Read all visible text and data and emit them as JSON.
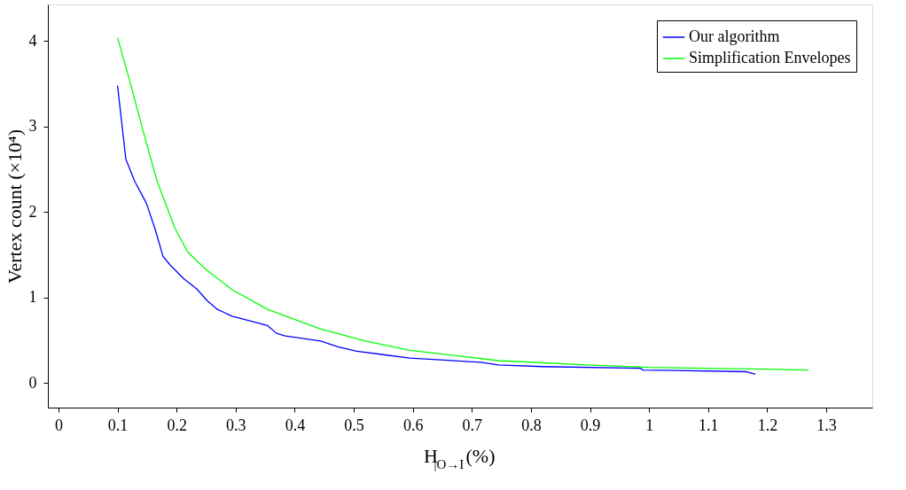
{
  "chart_data": {
    "type": "line",
    "xlabel": "H$_{|O→I}$(%)",
    "ylabel": "Vertex count (×10⁴)",
    "xlim": [
      -0.018,
      1.378
    ],
    "ylim": [
      -0.29,
      4.43
    ],
    "xticks": [
      0,
      0.1,
      0.2,
      0.3,
      0.4,
      0.5,
      0.6,
      0.7,
      0.8,
      0.9,
      1,
      1.1,
      1.2,
      1.3
    ],
    "yticks": [
      0,
      1,
      2,
      3,
      4
    ],
    "grid": false,
    "legend": "top right",
    "marker": "none",
    "line_style": "solid",
    "series": [
      {
        "name": "Our algorithm",
        "color": "#0000ff",
        "x": [
          0.1,
          0.114,
          0.129,
          0.149,
          0.164,
          0.177,
          0.189,
          0.212,
          0.234,
          0.252,
          0.269,
          0.294,
          0.354,
          0.369,
          0.384,
          0.444,
          0.474,
          0.505,
          0.55,
          0.595,
          0.715,
          0.745,
          0.82,
          0.985,
          0.99,
          1.165,
          1.18
        ],
        "values": [
          3.48,
          2.62,
          2.36,
          2.1,
          1.79,
          1.48,
          1.38,
          1.22,
          1.1,
          0.96,
          0.86,
          0.78,
          0.67,
          0.58,
          0.55,
          0.49,
          0.42,
          0.37,
          0.33,
          0.29,
          0.24,
          0.21,
          0.19,
          0.17,
          0.15,
          0.13,
          0.1
        ]
      },
      {
        "name": "Simplification Envelopes",
        "color": "#00ff00",
        "x": [
          0.1,
          0.122,
          0.144,
          0.167,
          0.197,
          0.219,
          0.249,
          0.294,
          0.354,
          0.444,
          0.52,
          0.595,
          0.745,
          0.895,
          1.0,
          1.195,
          1.27
        ],
        "values": [
          4.04,
          3.5,
          2.93,
          2.36,
          1.81,
          1.53,
          1.33,
          1.09,
          0.86,
          0.63,
          0.49,
          0.38,
          0.26,
          0.21,
          0.18,
          0.16,
          0.15
        ]
      }
    ]
  }
}
